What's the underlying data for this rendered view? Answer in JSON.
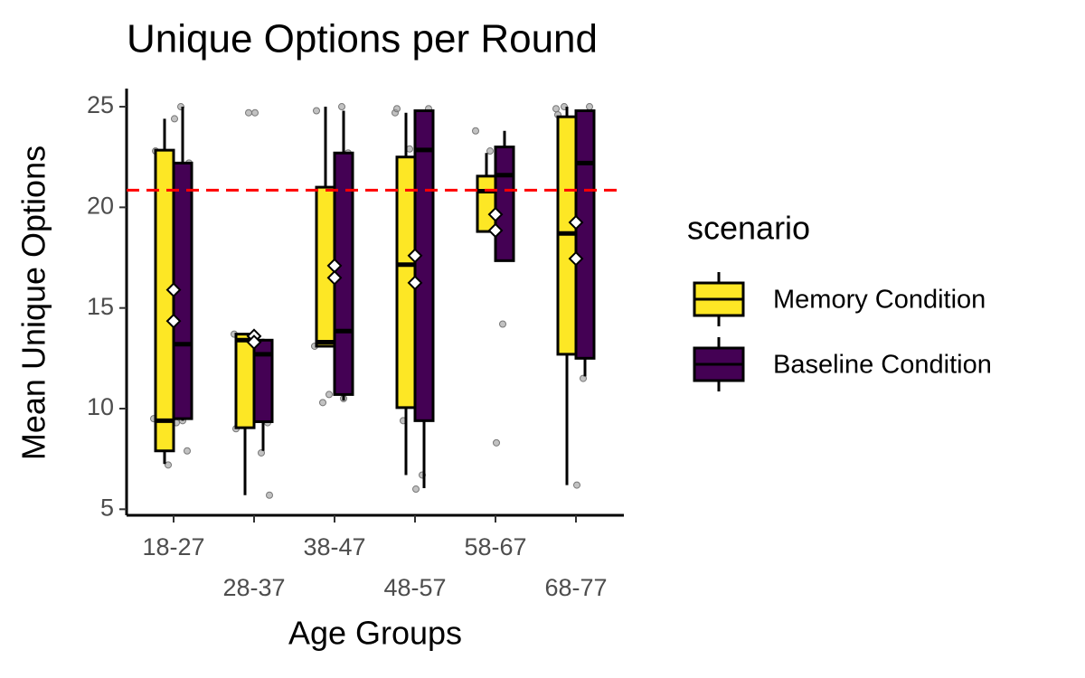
{
  "chart_data": {
    "type": "box",
    "title": "Unique Options per Round",
    "x_label": "Age Groups",
    "y_label": "Mean Unique Options",
    "categories": [
      "18-27",
      "28-37",
      "38-47",
      "48-57",
      "58-67",
      "68-77"
    ],
    "ylim": [
      4.7,
      25.9
    ],
    "yticks": [
      5,
      10,
      15,
      20,
      25
    ],
    "reference_line": 20.85,
    "reference_color": "#ff0000",
    "legend_title": "scenario",
    "legend_position": "right",
    "series": [
      {
        "name": "Memory Condition",
        "color": "#fde725",
        "whisker_low": [
          7.25,
          5.7,
          13.1,
          6.7,
          18.8,
          6.2
        ],
        "q1": [
          7.9,
          9.05,
          13.1,
          10.05,
          18.8,
          12.7
        ],
        "median": [
          9.4,
          13.4,
          13.3,
          17.15,
          20.8,
          18.7
        ],
        "q3": [
          22.84,
          13.7,
          21.0,
          22.5,
          21.55,
          24.5
        ],
        "whisker_high": [
          24.4,
          13.7,
          25.0,
          24.7,
          22.7,
          25.0
        ],
        "means": [
          15.9,
          13.6,
          17.1,
          17.6,
          19.65,
          19.25
        ]
      },
      {
        "name": "Baseline Condition",
        "color": "#440154",
        "whisker_low": [
          9.4,
          7.9,
          10.4,
          6.05,
          17.35,
          11.6
        ],
        "q1": [
          9.5,
          9.35,
          10.7,
          9.4,
          17.35,
          12.5
        ],
        "median": [
          13.2,
          12.7,
          13.85,
          22.85,
          21.6,
          22.2
        ],
        "q3": [
          22.2,
          13.4,
          22.7,
          24.8,
          23.0,
          24.8
        ],
        "whisker_high": [
          25.0,
          13.4,
          24.8,
          24.8,
          23.8,
          24.8
        ],
        "means": [
          14.35,
          13.3,
          16.5,
          16.25,
          18.85,
          17.45
        ]
      }
    ],
    "points": [
      [
        9.5,
        7.9,
        25.0,
        24.4,
        7.2,
        13.2,
        22.8,
        22.2,
        9.4,
        9.3
      ],
      [
        13.7,
        9.3,
        7.8,
        24.7,
        24.7,
        13.3,
        9.0,
        5.7,
        13.3
      ],
      [
        13.1,
        22.7,
        25.0,
        13.8,
        10.7,
        10.3,
        24.8,
        21.0,
        10.5
      ],
      [
        24.7,
        24.9,
        6.7,
        6.0,
        22.9,
        9.4,
        24.9
      ],
      [
        23.8,
        20.4,
        14.2,
        8.3,
        22.8
      ],
      [
        24.9,
        25.0,
        11.5,
        6.2,
        22.2,
        25.0,
        24.6
      ]
    ]
  }
}
